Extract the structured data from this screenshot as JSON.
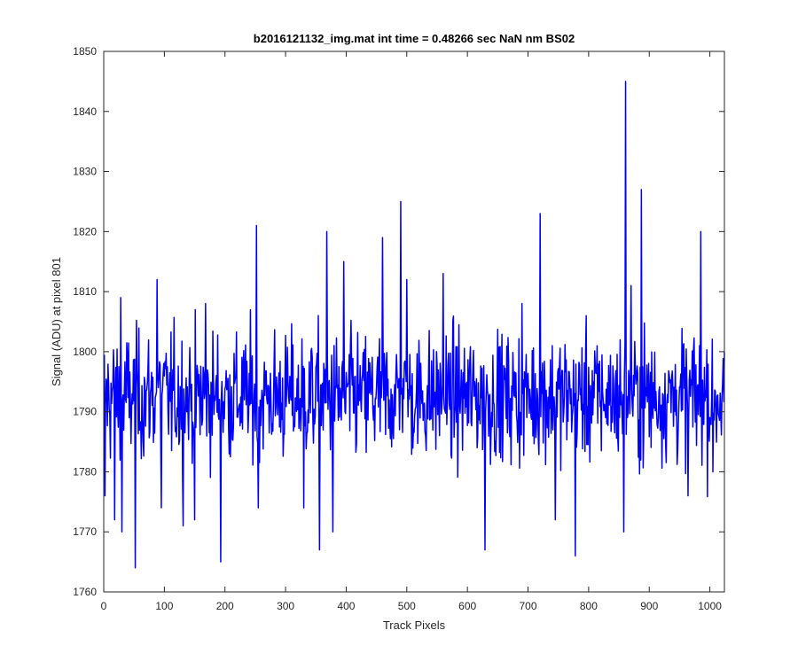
{
  "chart_data": {
    "type": "line",
    "title": "b2016121132_img.mat int time = 0.48266 sec  NaN nm BS02",
    "xlabel": "Track Pixels",
    "ylabel": "Signal (ADU) at pixel 801",
    "xlim": [
      0,
      1024
    ],
    "ylim": [
      1760,
      1850
    ],
    "xticks": [
      0,
      100,
      200,
      300,
      400,
      500,
      600,
      700,
      800,
      900,
      1000
    ],
    "yticks": [
      1760,
      1770,
      1780,
      1790,
      1800,
      1810,
      1820,
      1830,
      1840,
      1850
    ],
    "grid": false,
    "line_color": "#0000ff",
    "series": [
      {
        "x_start": 1,
        "x_step": 1,
        "count": 1024,
        "mean": 1792.5,
        "std": 7.5,
        "notable_points": [
          {
            "x": 2,
            "y": 1776
          },
          {
            "x": 18,
            "y": 1772
          },
          {
            "x": 28,
            "y": 1809
          },
          {
            "x": 30,
            "y": 1770
          },
          {
            "x": 52,
            "y": 1764
          },
          {
            "x": 88,
            "y": 1812
          },
          {
            "x": 95,
            "y": 1774
          },
          {
            "x": 131,
            "y": 1771
          },
          {
            "x": 150,
            "y": 1772
          },
          {
            "x": 168,
            "y": 1808
          },
          {
            "x": 193,
            "y": 1765
          },
          {
            "x": 252,
            "y": 1821
          },
          {
            "x": 255,
            "y": 1774
          },
          {
            "x": 330,
            "y": 1774
          },
          {
            "x": 356,
            "y": 1767
          },
          {
            "x": 368,
            "y": 1820
          },
          {
            "x": 378,
            "y": 1770
          },
          {
            "x": 396,
            "y": 1815
          },
          {
            "x": 460,
            "y": 1819
          },
          {
            "x": 490,
            "y": 1825
          },
          {
            "x": 500,
            "y": 1812
          },
          {
            "x": 560,
            "y": 1813
          },
          {
            "x": 629,
            "y": 1767
          },
          {
            "x": 690,
            "y": 1808
          },
          {
            "x": 720,
            "y": 1823
          },
          {
            "x": 745,
            "y": 1772
          },
          {
            "x": 778,
            "y": 1766
          },
          {
            "x": 858,
            "y": 1770
          },
          {
            "x": 861,
            "y": 1845
          },
          {
            "x": 870,
            "y": 1811
          },
          {
            "x": 887,
            "y": 1827
          },
          {
            "x": 964,
            "y": 1776
          },
          {
            "x": 985,
            "y": 1820
          },
          {
            "x": 1005,
            "y": 1780
          }
        ]
      }
    ]
  }
}
